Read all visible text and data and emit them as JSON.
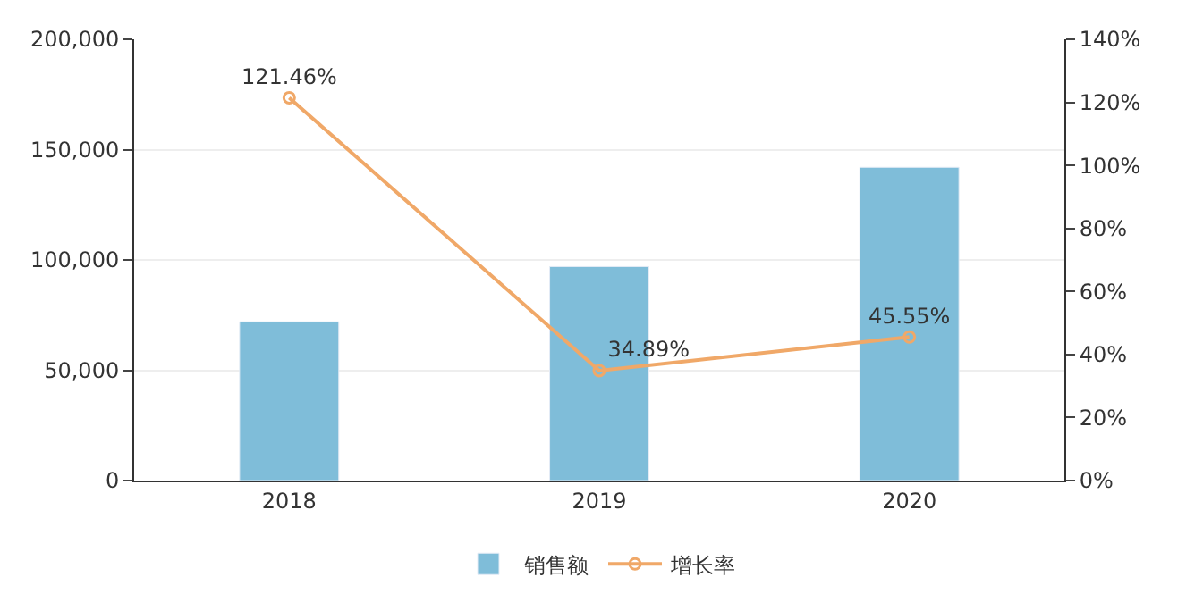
{
  "chart_data": {
    "type": "bar",
    "categories": [
      "2018",
      "2019",
      "2020"
    ],
    "series": [
      {
        "name": "销售额",
        "color": "#7fbdd9",
        "values": [
          72000,
          97000,
          142000
        ]
      },
      {
        "name": "增长率",
        "type": "line",
        "axis": "y2",
        "color": "#f0a868",
        "values": [
          121.46,
          34.89,
          45.55
        ],
        "value_labels": [
          "121.46%",
          "34.89%",
          "45.55%"
        ]
      }
    ],
    "ylim": [
      0,
      200000
    ],
    "yticks": [
      0,
      {
        "value": 50000,
        "label": "50,000"
      },
      {
        "value": 100000,
        "label": "100,000"
      },
      {
        "value": 150000,
        "label": "150,000"
      },
      {
        "value": 200000,
        "label": "200,000"
      }
    ],
    "y2lim": [
      0,
      140
    ],
    "y2ticks": [
      {
        "value": 0,
        "label": "0%"
      },
      {
        "value": 20,
        "label": "20%"
      },
      {
        "value": 40,
        "label": "40%"
      },
      {
        "value": 60,
        "label": "60%"
      },
      {
        "value": 80,
        "label": "80%"
      },
      {
        "value": 100,
        "label": "100%"
      },
      {
        "value": 120,
        "label": "120%"
      },
      {
        "value": 140,
        "label": "140%"
      }
    ],
    "grid": "y",
    "legend": "bottom",
    "marker": "circle",
    "line_style": "solid"
  }
}
